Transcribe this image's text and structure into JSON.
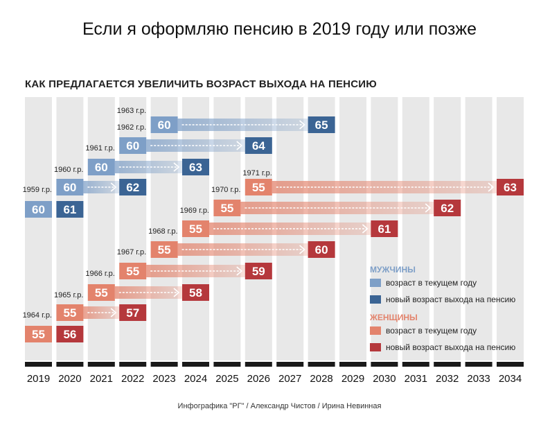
{
  "title": "Если я оформляю пенсию в 2019 году или позже",
  "subtitle": "КАК ПРЕДЛАГАЕТСЯ УВЕЛИЧИТЬ ВОЗРАСТ ВЫХОДА НА ПЕНСИЮ",
  "credit": "Инфографика \"РГ\" / Александр Чистов / Ирина Невинная",
  "colors": {
    "men_current": "#7e9fc7",
    "men_new": "#3b6494",
    "women_current": "#e3836c",
    "women_new": "#b5383c",
    "column_shade": "#e8e8e8",
    "axis_bar": "#1a1a1a"
  },
  "legend": {
    "men": {
      "title": "МУЖЧИНЫ",
      "current": "возраст в текущем году",
      "new": "новый возраст выхода на пенсию"
    },
    "women": {
      "title": "ЖЕНЩИНЫ",
      "current": "возраст в текущем году",
      "new": "новый возраст выхода на пенсию"
    }
  },
  "chart_data": {
    "type": "timeline",
    "years": [
      2019,
      2020,
      2021,
      2022,
      2023,
      2024,
      2025,
      2026,
      2027,
      2028,
      2029,
      2030,
      2031,
      2032,
      2033,
      2034
    ],
    "men": [
      {
        "cohort": "",
        "current_year": 2019,
        "current_age": 60,
        "new_year": 2020,
        "new_age": 61
      },
      {
        "cohort": "1959 г.р.",
        "current_year": 2020,
        "current_age": 60,
        "new_year": 2022,
        "new_age": 62
      },
      {
        "cohort": "1960 г.р.",
        "current_year": 2021,
        "current_age": 60,
        "new_year": 2024,
        "new_age": 63
      },
      {
        "cohort": "1961 г.р.",
        "current_year": 2022,
        "current_age": 60,
        "new_year": 2026,
        "new_age": 64
      },
      {
        "cohort": "1962 г.р.",
        "current_year": 2023,
        "current_age": 60,
        "new_year": 2028,
        "new_age": 65
      }
    ],
    "women": [
      {
        "cohort": "",
        "current_year": 2019,
        "current_age": 55,
        "new_year": 2020,
        "new_age": 56
      },
      {
        "cohort": "1964 г.р.",
        "current_year": 2020,
        "current_age": 55,
        "new_year": 2022,
        "new_age": 57
      },
      {
        "cohort": "1965 г.р.",
        "current_year": 2021,
        "current_age": 55,
        "new_year": 2024,
        "new_age": 58
      },
      {
        "cohort": "1966 г.р.",
        "current_year": 2022,
        "current_age": 55,
        "new_year": 2026,
        "new_age": 59
      },
      {
        "cohort": "1967 г.р.",
        "current_year": 2023,
        "current_age": 55,
        "new_year": 2028,
        "new_age": 60
      },
      {
        "cohort": "1968 г.р.",
        "current_year": 2024,
        "current_age": 55,
        "new_year": 2030,
        "new_age": 61
      },
      {
        "cohort": "1969 г.р.",
        "current_year": 2025,
        "current_age": 55,
        "new_year": 2032,
        "new_age": 62
      },
      {
        "cohort": "1970 г.р.",
        "current_year": 2026,
        "current_age": 55,
        "new_year": 2034,
        "new_age": 63
      }
    ],
    "top_cohort_label": "1963 г.р.",
    "women_top_cohort_label": "1971 г.р."
  }
}
